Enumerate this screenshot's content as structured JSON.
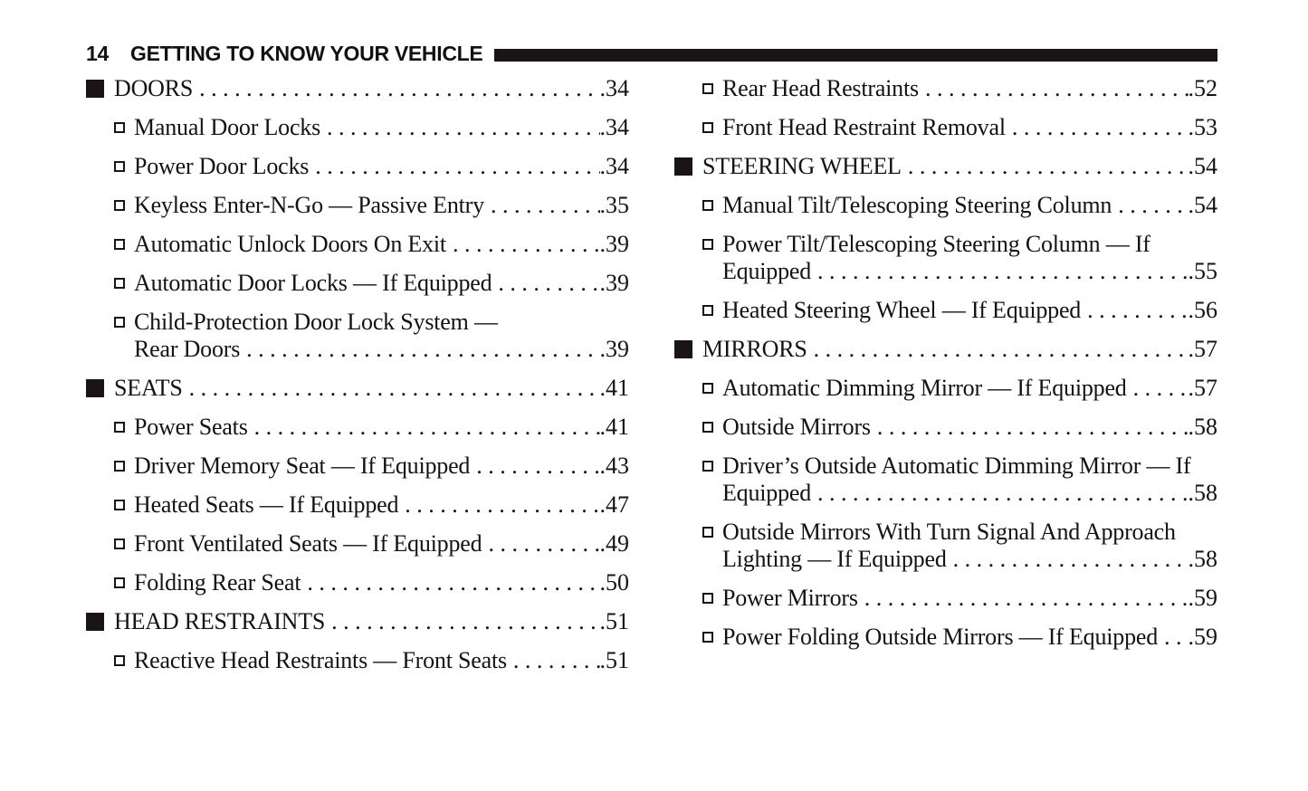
{
  "page": {
    "number": "14",
    "title": "GETTING TO KNOW YOUR VEHICLE"
  },
  "colors": {
    "text": "#161114",
    "header_bar": "#1a1418",
    "background": "#ffffff"
  },
  "icons": {
    "section_marker": "filled-square",
    "sub_marker": "open-square"
  },
  "toc": {
    "left": [
      {
        "level": "section",
        "lines": [
          "DOORS"
        ],
        "page": "34"
      },
      {
        "level": "sub",
        "lines": [
          "Manual Door Locks"
        ],
        "page": "34"
      },
      {
        "level": "sub",
        "lines": [
          "Power Door Locks"
        ],
        "page": "34"
      },
      {
        "level": "sub",
        "lines": [
          "Keyless Enter-N-Go — Passive Entry"
        ],
        "page": "35"
      },
      {
        "level": "sub",
        "lines": [
          "Automatic Unlock Doors On Exit"
        ],
        "page": "39"
      },
      {
        "level": "sub",
        "lines": [
          "Automatic Door Locks — If Equipped"
        ],
        "page": "39"
      },
      {
        "level": "sub",
        "lines": [
          "Child-Protection Door Lock System —",
          "Rear Doors"
        ],
        "page": "39"
      },
      {
        "level": "section",
        "lines": [
          "SEATS"
        ],
        "page": "41"
      },
      {
        "level": "sub",
        "lines": [
          "Power Seats"
        ],
        "page": "41"
      },
      {
        "level": "sub",
        "lines": [
          "Driver Memory Seat — If Equipped"
        ],
        "page": "43"
      },
      {
        "level": "sub",
        "lines": [
          "Heated Seats — If Equipped"
        ],
        "page": "47"
      },
      {
        "level": "sub",
        "lines": [
          "Front Ventilated Seats — If Equipped"
        ],
        "page": "49"
      },
      {
        "level": "sub",
        "lines": [
          "Folding Rear Seat"
        ],
        "page": "50"
      },
      {
        "level": "section",
        "lines": [
          "HEAD RESTRAINTS"
        ],
        "page": "51"
      },
      {
        "level": "sub",
        "lines": [
          "Reactive Head Restraints — Front Seats"
        ],
        "page": "51"
      }
    ],
    "right": [
      {
        "level": "sub",
        "lines": [
          "Rear Head Restraints"
        ],
        "page": "52"
      },
      {
        "level": "sub",
        "lines": [
          "Front Head Restraint Removal"
        ],
        "page": "53"
      },
      {
        "level": "section",
        "lines": [
          "STEERING WHEEL"
        ],
        "page": "54"
      },
      {
        "level": "sub",
        "lines": [
          "Manual Tilt/Telescoping Steering Column"
        ],
        "page": "54"
      },
      {
        "level": "sub",
        "lines": [
          "Power Tilt/Telescoping Steering Column — If",
          "Equipped"
        ],
        "page": "55"
      },
      {
        "level": "sub",
        "lines": [
          "Heated Steering Wheel — If Equipped"
        ],
        "page": "56"
      },
      {
        "level": "section",
        "lines": [
          "MIRRORS"
        ],
        "page": "57"
      },
      {
        "level": "sub",
        "lines": [
          "Automatic Dimming Mirror — If Equipped"
        ],
        "page": "57"
      },
      {
        "level": "sub",
        "lines": [
          "Outside Mirrors"
        ],
        "page": "58"
      },
      {
        "level": "sub",
        "lines": [
          "Driver’s Outside Automatic Dimming Mirror — If",
          "Equipped"
        ],
        "page": "58"
      },
      {
        "level": "sub",
        "lines": [
          "Outside Mirrors With Turn Signal And Approach",
          "Lighting — If Equipped"
        ],
        "page": "58"
      },
      {
        "level": "sub",
        "lines": [
          "Power Mirrors"
        ],
        "page": "59"
      },
      {
        "level": "sub",
        "lines": [
          "Power Folding Outside Mirrors — If Equipped"
        ],
        "page": "59"
      }
    ]
  }
}
